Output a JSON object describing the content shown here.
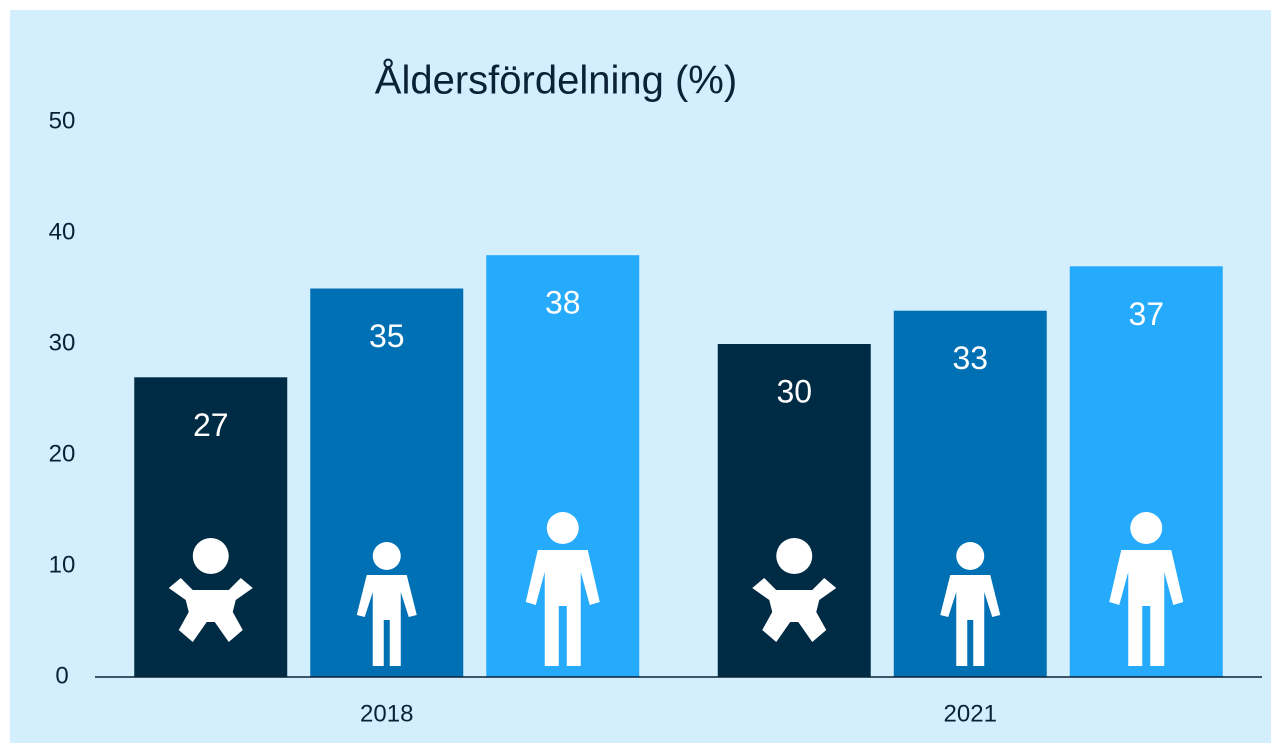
{
  "chart_data": {
    "type": "bar",
    "title": "Åldersfördelning (%)",
    "categories": [
      "2018",
      "2021"
    ],
    "series": [
      {
        "color": "#002b45",
        "values": [
          27,
          30
        ]
      },
      {
        "color": "#0070b5",
        "values": [
          35,
          33
        ]
      },
      {
        "color": "#26aafc",
        "values": [
          38,
          37
        ]
      }
    ],
    "ylim": [
      0,
      50
    ],
    "yticks": [
      0,
      10,
      20,
      30,
      40,
      50
    ],
    "grid": false
  }
}
